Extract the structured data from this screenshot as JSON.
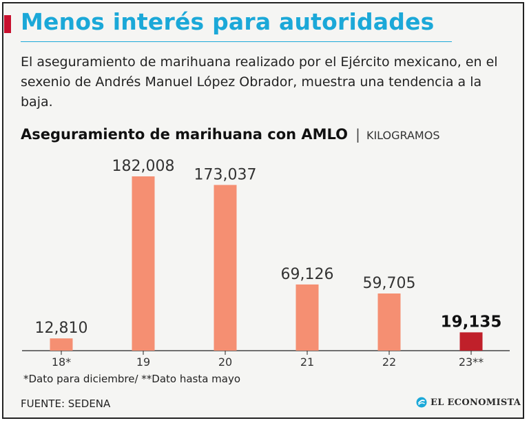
{
  "header": {
    "title": "Menos interés para autoridades",
    "subtitle": "El aseguramiento de marihuana realizado por el Ejército mexicano, en el sexenio de Andrés Manuel López Obrador, muestra una tendencia a la baja."
  },
  "chart_header": {
    "title": "Aseguramiento de marihuana con AMLO",
    "separator": "|",
    "unit": "KILOGRAMOS"
  },
  "chart_data": {
    "type": "bar",
    "title": "Aseguramiento de marihuana con AMLO",
    "ylabel": "KILOGRAMOS",
    "xlabel": "",
    "categories": [
      "18*",
      "19",
      "20",
      "21",
      "22",
      "23**"
    ],
    "values": [
      12810,
      182008,
      173037,
      69126,
      59705,
      19135
    ],
    "value_labels": [
      "12,810",
      "182,008",
      "173,037",
      "69,126",
      "59,705",
      "19,135"
    ],
    "highlight_index": 5,
    "ylim": [
      0,
      182008
    ],
    "grid": false
  },
  "colors": {
    "bar": "#f58f72",
    "highlight": "#c0202a",
    "title": "#1ba8d8",
    "accent": "#c8102e"
  },
  "footnote": "*Dato para diciembre/ **Dato hasta mayo",
  "source": "FUENTE: SEDENA",
  "logo": {
    "text": "EL ECONOMISTA",
    "icon": "el-economista-logo-icon"
  }
}
